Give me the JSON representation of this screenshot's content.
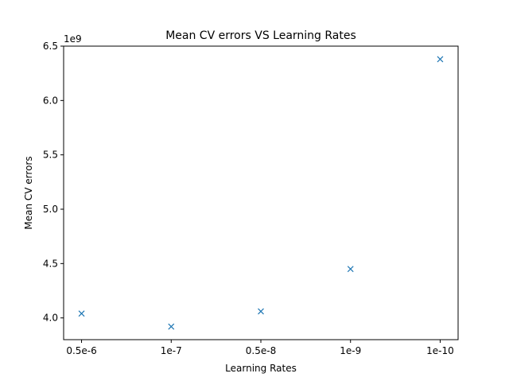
{
  "chart_data": {
    "type": "scatter",
    "title": "Mean CV errors VS Learning Rates",
    "xlabel": "Learning Rates",
    "ylabel": "Mean CV errors",
    "y_offset_label": "1e9",
    "categories": [
      "0.5e-6",
      "1e-7",
      "0.5e-8",
      "1e-9",
      "1e-10"
    ],
    "y_multiplier": 1000000000,
    "values": [
      4.04,
      3.92,
      4.06,
      4.45,
      6.38
    ],
    "ylim": [
      3.8,
      6.5
    ],
    "yticks": [
      4.0,
      4.5,
      5.0,
      5.5,
      6.0,
      6.5
    ],
    "ytick_labels": [
      "4.0",
      "4.5",
      "5.0",
      "5.5",
      "6.0",
      "6.5"
    ],
    "marker": "x",
    "color": "#1f77b4",
    "grid": false,
    "legend": false
  }
}
